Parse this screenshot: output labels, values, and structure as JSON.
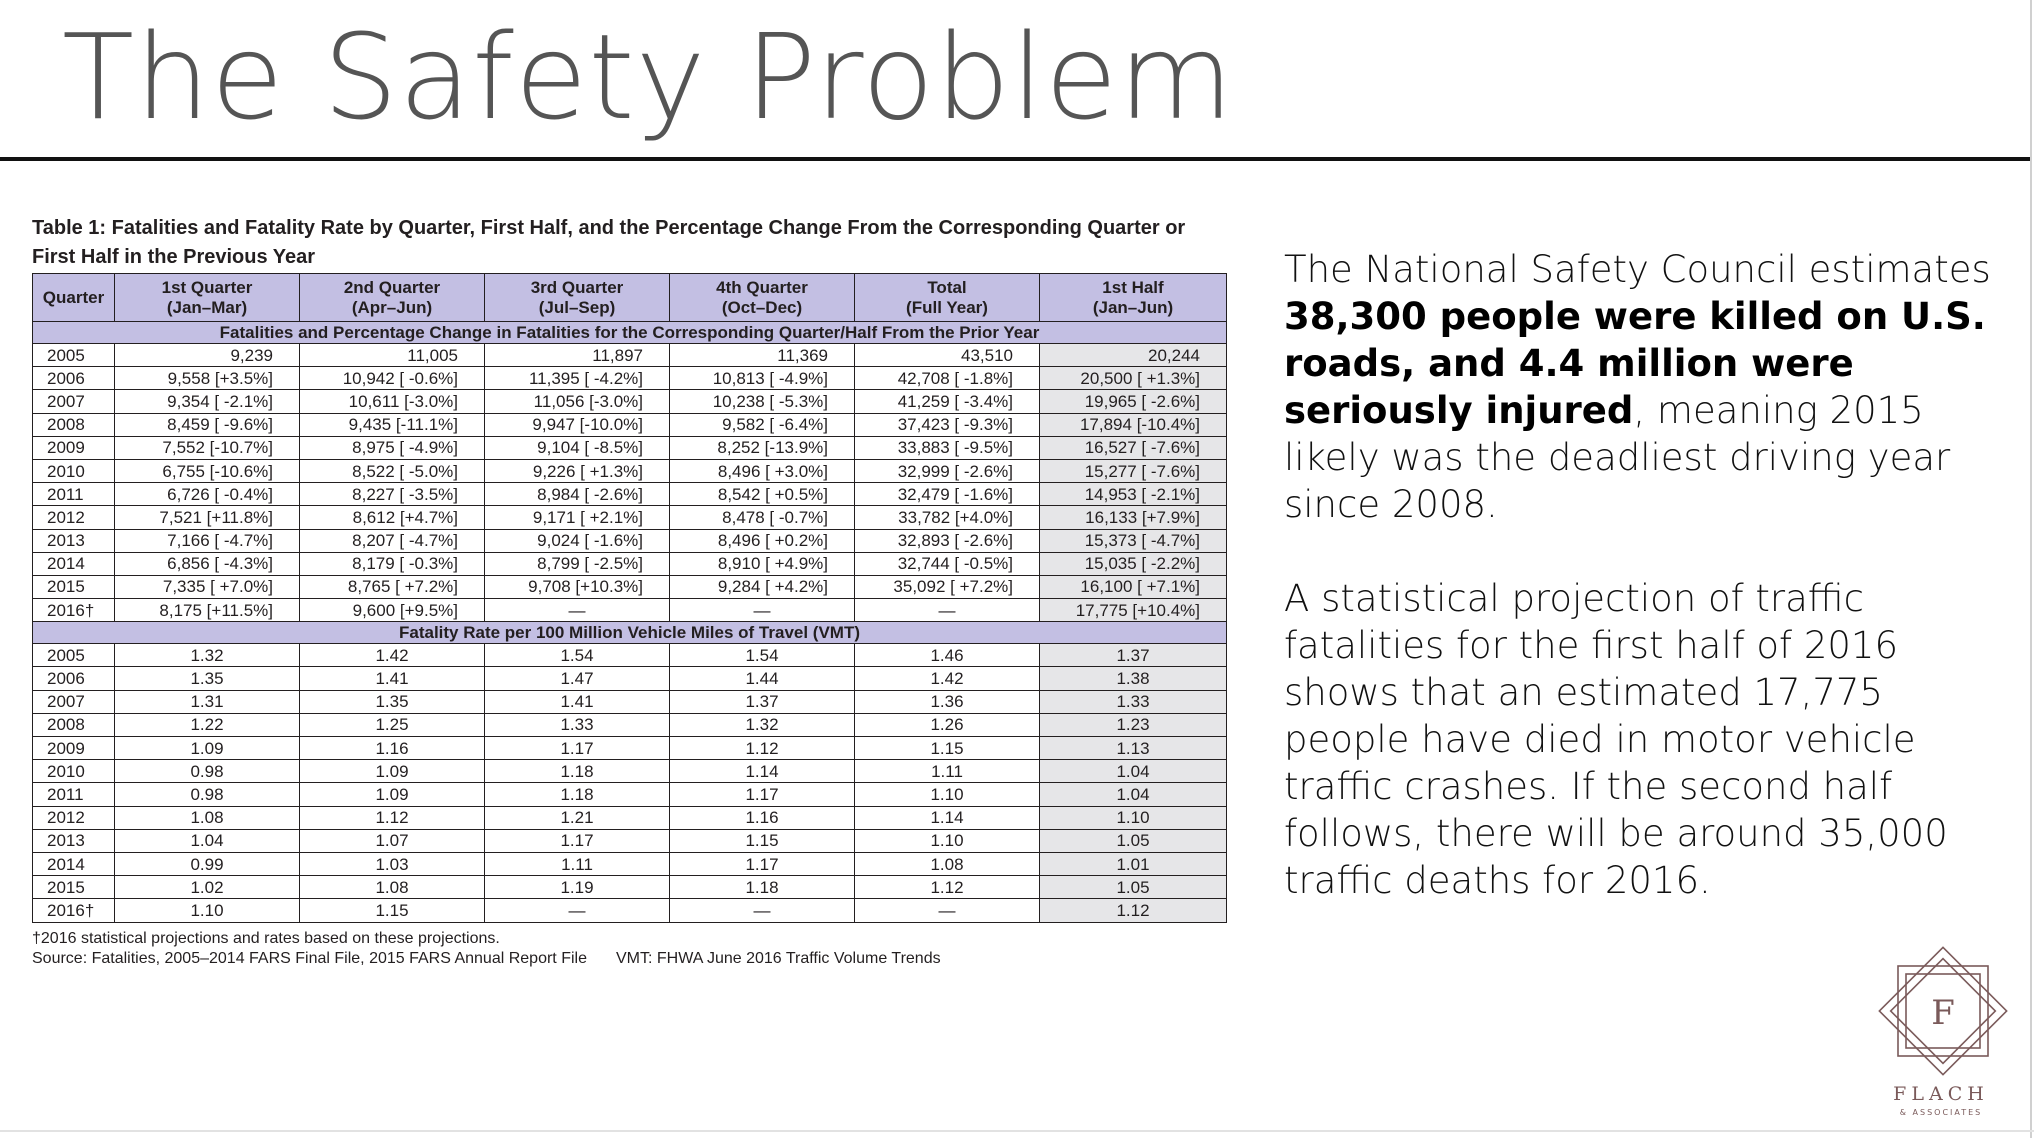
{
  "slide": {
    "title": "The Safety Problem"
  },
  "table": {
    "caption_line1": "Table 1: Fatalities and Fatality Rate by Quarter, First Half, and the Percentage Change From the Corresponding Quarter or",
    "caption_line2": "First Half in the Previous Year",
    "headers": [
      [
        "Quarter",
        ""
      ],
      [
        "1st Quarter",
        "(Jan–Mar)"
      ],
      [
        "2nd Quarter",
        "(Apr–Jun)"
      ],
      [
        "3rd Quarter",
        "(Jul–Sep)"
      ],
      [
        "4th Quarter",
        "(Oct–Dec)"
      ],
      [
        "Total",
        "(Full Year)"
      ],
      [
        "1st Half",
        "(Jan–Jun)"
      ]
    ],
    "section1_title": "Fatalities and Percentage Change in Fatalities for the Corresponding Quarter/Half From the Prior Year",
    "fatalities": [
      [
        "2005",
        "9,239",
        "11,005",
        "11,897",
        "11,369",
        "43,510",
        "20,244"
      ],
      [
        "2006",
        "9,558 [+3.5%]",
        "10,942 [ -0.6%]",
        "11,395 [ -4.2%]",
        "10,813 [ -4.9%]",
        "42,708 [ -1.8%]",
        "20,500 [ +1.3%]"
      ],
      [
        "2007",
        "9,354 [ -2.1%]",
        "10,611 [-3.0%]",
        "11,056 [-3.0%]",
        "10,238 [ -5.3%]",
        "41,259 [ -3.4%]",
        "19,965 [ -2.6%]"
      ],
      [
        "2008",
        "8,459 [ -9.6%]",
        "9,435 [-11.1%]",
        "9,947 [-10.0%]",
        "9,582 [ -6.4%]",
        "37,423 [ -9.3%]",
        "17,894 [-10.4%]"
      ],
      [
        "2009",
        "7,552 [-10.7%]",
        "8,975 [ -4.9%]",
        "9,104 [ -8.5%]",
        "8,252 [-13.9%]",
        "33,883 [ -9.5%]",
        "16,527 [ -7.6%]"
      ],
      [
        "2010",
        "6,755 [-10.6%]",
        "8,522 [ -5.0%]",
        "9,226 [ +1.3%]",
        "8,496 [ +3.0%]",
        "32,999 [ -2.6%]",
        "15,277 [ -7.6%]"
      ],
      [
        "2011",
        "6,726 [ -0.4%]",
        "8,227 [ -3.5%]",
        "8,984 [ -2.6%]",
        "8,542 [ +0.5%]",
        "32,479 [ -1.6%]",
        "14,953 [ -2.1%]"
      ],
      [
        "2012",
        "7,521 [+11.8%]",
        "8,612 [+4.7%]",
        "9,171 [ +2.1%]",
        "8,478 [ -0.7%]",
        "33,782 [+4.0%]",
        "16,133 [+7.9%]"
      ],
      [
        "2013",
        "7,166 [ -4.7%]",
        "8,207 [ -4.7%]",
        "9,024 [ -1.6%]",
        "8,496 [ +0.2%]",
        "32,893 [ -2.6%]",
        "15,373 [ -4.7%]"
      ],
      [
        "2014",
        "6,856 [ -4.3%]",
        "8,179 [ -0.3%]",
        "8,799 [ -2.5%]",
        "8,910 [ +4.9%]",
        "32,744 [ -0.5%]",
        "15,035 [ -2.2%]"
      ],
      [
        "2015",
        "7,335 [ +7.0%]",
        "8,765 [ +7.2%]",
        "9,708 [+10.3%]",
        "9,284 [ +4.2%]",
        "35,092 [ +7.2%]",
        "16,100 [ +7.1%]"
      ],
      [
        "2016†",
        "8,175 [+11.5%]",
        "9,600 [+9.5%]",
        "—",
        "—",
        "—",
        "17,775 [+10.4%]"
      ]
    ],
    "section2_title": "Fatality Rate per 100 Million Vehicle Miles of Travel (VMT)",
    "rates": [
      [
        "2005",
        "1.32",
        "1.42",
        "1.54",
        "1.54",
        "1.46",
        "1.37"
      ],
      [
        "2006",
        "1.35",
        "1.41",
        "1.47",
        "1.44",
        "1.42",
        "1.38"
      ],
      [
        "2007",
        "1.31",
        "1.35",
        "1.41",
        "1.37",
        "1.36",
        "1.33"
      ],
      [
        "2008",
        "1.22",
        "1.25",
        "1.33",
        "1.32",
        "1.26",
        "1.23"
      ],
      [
        "2009",
        "1.09",
        "1.16",
        "1.17",
        "1.12",
        "1.15",
        "1.13"
      ],
      [
        "2010",
        "0.98",
        "1.09",
        "1.18",
        "1.14",
        "1.11",
        "1.04"
      ],
      [
        "2011",
        "0.98",
        "1.09",
        "1.18",
        "1.17",
        "1.10",
        "1.04"
      ],
      [
        "2012",
        "1.08",
        "1.12",
        "1.21",
        "1.16",
        "1.14",
        "1.10"
      ],
      [
        "2013",
        "1.04",
        "1.07",
        "1.17",
        "1.15",
        "1.10",
        "1.05"
      ],
      [
        "2014",
        "0.99",
        "1.03",
        "1.11",
        "1.17",
        "1.08",
        "1.01"
      ],
      [
        "2015",
        "1.02",
        "1.08",
        "1.19",
        "1.18",
        "1.12",
        "1.05"
      ],
      [
        "2016†",
        "1.10",
        "1.15",
        "—",
        "—",
        "—",
        "1.12"
      ]
    ],
    "footnote": "†2016 statistical projections and rates based on these projections.",
    "source": "Source: Fatalities, 2005–2014 FARS Final File, 2015 FARS Annual Report File",
    "vmt_source": "VMT: FHWA June 2016 Traffic Volume Trends"
  },
  "body": {
    "p1_pre": "The National Safety Council estimates ",
    "p1_bold": "38,300 people were killed on U.S. roads, and 4.4 million were seriously injured",
    "p1_post": ", meaning 2015 likely was the deadliest driving year since 2008.",
    "p2": "A statistical projection of traffic fatalities for the first half of 2016 shows that an estimated 17,775 people have died in motor vehicle traffic crashes.  If the second half follows, there will be around 35,000 traffic deaths for 2016."
  },
  "logo": {
    "letter": "F",
    "name": "FLACH",
    "sub": "& ASSOCIATES",
    "color": "#7a5a5a"
  },
  "colors": {
    "header_fill": "#c3bfe3",
    "half_column_fill": "#e6e6e8",
    "title_color": "#555555"
  }
}
